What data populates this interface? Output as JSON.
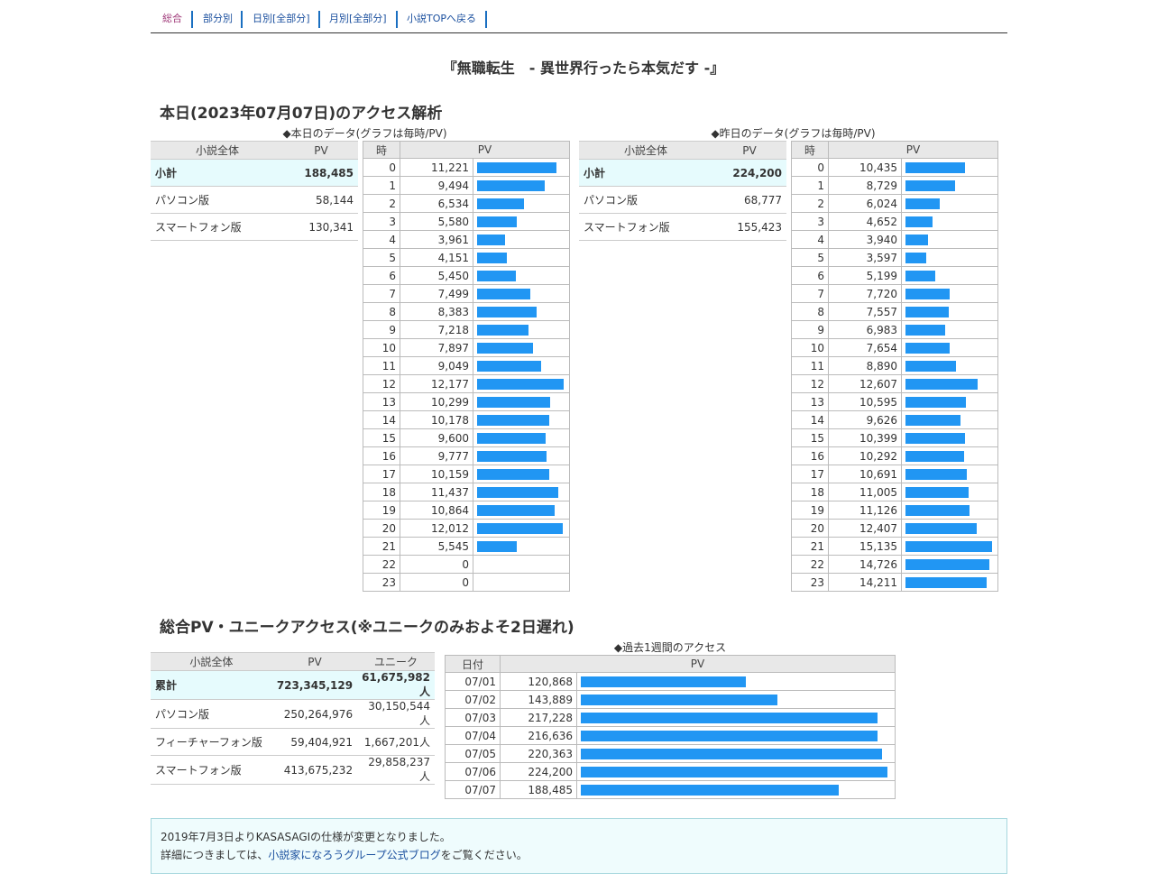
{
  "nav": {
    "items": [
      {
        "label": "総合",
        "current": true
      },
      {
        "label": "部分別"
      },
      {
        "label": "日別[全部分]"
      },
      {
        "label": "月別[全部分]"
      },
      {
        "label": "小説TOPへ戻る"
      }
    ]
  },
  "novel_title": "『無職転生　- 異世界行ったら本気だす -』",
  "today_heading": "本日(2023年07月07日)のアクセス解析",
  "today": {
    "caption": "◆本日のデータ(グラフは毎時/PV)",
    "summary_headers": [
      "小説全体",
      "PV"
    ],
    "summary_rows": [
      {
        "label": "小計",
        "value": "188,485"
      },
      {
        "label": "パソコン版",
        "value": "58,144"
      },
      {
        "label": "スマートフォン版",
        "value": "130,341"
      }
    ],
    "hourly_headers": [
      "時",
      "PV"
    ],
    "hourly": [
      {
        "h": "0",
        "pv": "11,221",
        "n": 11221
      },
      {
        "h": "1",
        "pv": "9,494",
        "n": 9494
      },
      {
        "h": "2",
        "pv": "6,534",
        "n": 6534
      },
      {
        "h": "3",
        "pv": "5,580",
        "n": 5580
      },
      {
        "h": "4",
        "pv": "3,961",
        "n": 3961
      },
      {
        "h": "5",
        "pv": "4,151",
        "n": 4151
      },
      {
        "h": "6",
        "pv": "5,450",
        "n": 5450
      },
      {
        "h": "7",
        "pv": "7,499",
        "n": 7499
      },
      {
        "h": "8",
        "pv": "8,383",
        "n": 8383
      },
      {
        "h": "9",
        "pv": "7,218",
        "n": 7218
      },
      {
        "h": "10",
        "pv": "7,897",
        "n": 7897
      },
      {
        "h": "11",
        "pv": "9,049",
        "n": 9049
      },
      {
        "h": "12",
        "pv": "12,177",
        "n": 12177
      },
      {
        "h": "13",
        "pv": "10,299",
        "n": 10299
      },
      {
        "h": "14",
        "pv": "10,178",
        "n": 10178
      },
      {
        "h": "15",
        "pv": "9,600",
        "n": 9600
      },
      {
        "h": "16",
        "pv": "9,777",
        "n": 9777
      },
      {
        "h": "17",
        "pv": "10,159",
        "n": 10159
      },
      {
        "h": "18",
        "pv": "11,437",
        "n": 11437
      },
      {
        "h": "19",
        "pv": "10,864",
        "n": 10864
      },
      {
        "h": "20",
        "pv": "12,012",
        "n": 12012
      },
      {
        "h": "21",
        "pv": "5,545",
        "n": 5545
      },
      {
        "h": "22",
        "pv": "0",
        "n": 0
      },
      {
        "h": "23",
        "pv": "0",
        "n": 0
      }
    ]
  },
  "yesterday": {
    "caption": "◆昨日のデータ(グラフは毎時/PV)",
    "summary_headers": [
      "小説全体",
      "PV"
    ],
    "summary_rows": [
      {
        "label": "小計",
        "value": "224,200"
      },
      {
        "label": "パソコン版",
        "value": "68,777"
      },
      {
        "label": "スマートフォン版",
        "value": "155,423"
      }
    ],
    "hourly_headers": [
      "時",
      "PV"
    ],
    "hourly": [
      {
        "h": "0",
        "pv": "10,435",
        "n": 10435
      },
      {
        "h": "1",
        "pv": "8,729",
        "n": 8729
      },
      {
        "h": "2",
        "pv": "6,024",
        "n": 6024
      },
      {
        "h": "3",
        "pv": "4,652",
        "n": 4652
      },
      {
        "h": "4",
        "pv": "3,940",
        "n": 3940
      },
      {
        "h": "5",
        "pv": "3,597",
        "n": 3597
      },
      {
        "h": "6",
        "pv": "5,199",
        "n": 5199
      },
      {
        "h": "7",
        "pv": "7,720",
        "n": 7720
      },
      {
        "h": "8",
        "pv": "7,557",
        "n": 7557
      },
      {
        "h": "9",
        "pv": "6,983",
        "n": 6983
      },
      {
        "h": "10",
        "pv": "7,654",
        "n": 7654
      },
      {
        "h": "11",
        "pv": "8,890",
        "n": 8890
      },
      {
        "h": "12",
        "pv": "12,607",
        "n": 12607
      },
      {
        "h": "13",
        "pv": "10,595",
        "n": 10595
      },
      {
        "h": "14",
        "pv": "9,626",
        "n": 9626
      },
      {
        "h": "15",
        "pv": "10,399",
        "n": 10399
      },
      {
        "h": "16",
        "pv": "10,292",
        "n": 10292
      },
      {
        "h": "17",
        "pv": "10,691",
        "n": 10691
      },
      {
        "h": "18",
        "pv": "11,005",
        "n": 11005
      },
      {
        "h": "19",
        "pv": "11,126",
        "n": 11126
      },
      {
        "h": "20",
        "pv": "12,407",
        "n": 12407
      },
      {
        "h": "21",
        "pv": "15,135",
        "n": 15135
      },
      {
        "h": "22",
        "pv": "14,726",
        "n": 14726
      },
      {
        "h": "23",
        "pv": "14,211",
        "n": 14211
      }
    ]
  },
  "total_heading": "総合PV・ユニークアクセス(※ユニークのみおよそ2日遅れ)",
  "total": {
    "headers": [
      "小説全体",
      "PV",
      "ユニーク"
    ],
    "rows": [
      {
        "label": "累計",
        "pv": "723,345,129",
        "unique": "61,675,982人"
      },
      {
        "label": "パソコン版",
        "pv": "250,264,976",
        "unique": "30,150,544人"
      },
      {
        "label": "フィーチャーフォン版",
        "pv": "59,404,921",
        "unique": "1,667,201人"
      },
      {
        "label": "スマートフォン版",
        "pv": "413,675,232",
        "unique": "29,858,237人"
      }
    ]
  },
  "week": {
    "caption": "◆過去1週間のアクセス",
    "headers": [
      "日付",
      "PV"
    ],
    "rows": [
      {
        "d": "07/01",
        "pv": "120,868",
        "n": 120868
      },
      {
        "d": "07/02",
        "pv": "143,889",
        "n": 143889
      },
      {
        "d": "07/03",
        "pv": "217,228",
        "n": 217228
      },
      {
        "d": "07/04",
        "pv": "216,636",
        "n": 216636
      },
      {
        "d": "07/05",
        "pv": "220,363",
        "n": 220363
      },
      {
        "d": "07/06",
        "pv": "224,200",
        "n": 224200
      },
      {
        "d": "07/07",
        "pv": "188,485",
        "n": 188485
      }
    ]
  },
  "notice": {
    "line1": "2019年7月3日よりKASASAGIの仕様が変更となりました。",
    "line2_pre": "詳細につきましては、",
    "line2_link": "小説家になろうグループ公式ブログ",
    "line2_post": "をご覧ください。"
  },
  "colors": {
    "bar": "#2196f3",
    "highlight_row": "#e6fbfd",
    "header_bg": "#e8e8e8",
    "link": "#1a4f9e"
  }
}
